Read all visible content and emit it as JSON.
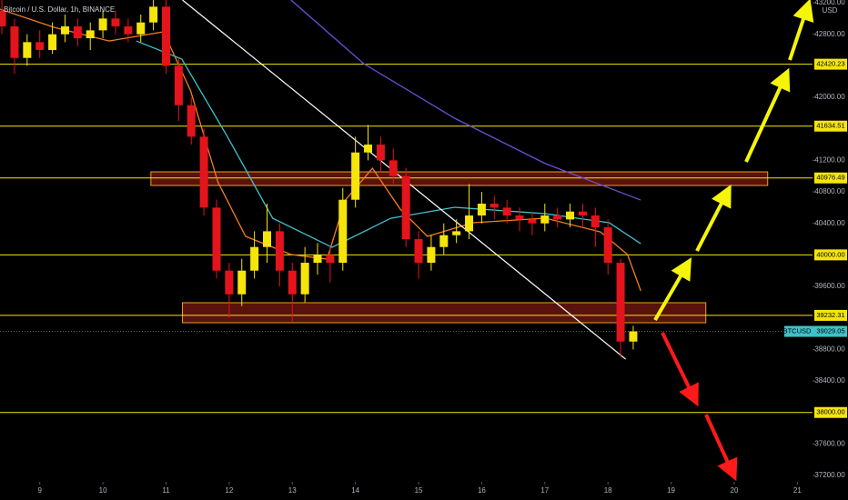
{
  "chart_data": {
    "type": "candlestick",
    "title": "Bitcoin / U.S. Dollar, 1h, BINANCE",
    "currency": "USD",
    "xlim": [
      8.37,
      21.24
    ],
    "ylim": [
      37120,
      43235
    ],
    "xticks": [
      9,
      10,
      11,
      12,
      13,
      14,
      15,
      16,
      17,
      18,
      19,
      20,
      21
    ],
    "yticks": [
      {
        "value": 43200,
        "label": "43200.00"
      },
      {
        "value": 42800,
        "label": "42800.00"
      },
      {
        "value": 42000,
        "label": "42000.00"
      },
      {
        "value": 41200,
        "label": "41200.00"
      },
      {
        "value": 40800,
        "label": "40800.00"
      },
      {
        "value": 40400,
        "label": "40400.00"
      },
      {
        "value": 39600,
        "label": "39600.00"
      },
      {
        "value": 38800,
        "label": "38800.00"
      },
      {
        "value": 38400,
        "label": "38400.00"
      },
      {
        "value": 37600,
        "label": "37600.00"
      },
      {
        "value": 37200,
        "label": "37200.00"
      }
    ],
    "candles": {
      "up_color": "#f5e50a",
      "down_color": "#e3141b",
      "x": [
        8.4,
        8.6,
        8.8,
        9.0,
        9.2,
        9.4,
        9.6,
        9.8,
        10.0,
        10.2,
        10.4,
        10.6,
        10.8,
        11.0,
        11.2,
        11.4,
        11.6,
        11.8,
        12.0,
        12.2,
        12.4,
        12.6,
        12.8,
        13.0,
        13.2,
        13.4,
        13.6,
        13.8,
        14.0,
        14.2,
        14.4,
        14.6,
        14.8,
        15.0,
        15.2,
        15.4,
        15.6,
        15.8,
        16.0,
        16.2,
        16.4,
        16.6,
        16.8,
        17.0,
        17.2,
        17.4,
        17.6,
        17.8,
        18.0,
        18.2,
        18.4
      ],
      "open": [
        43100,
        42900,
        42500,
        42700,
        42600,
        42800,
        42900,
        42750,
        42850,
        43000,
        42900,
        42800,
        42950,
        43150,
        42400,
        41900,
        41500,
        40600,
        39800,
        39500,
        39800,
        40100,
        40300,
        39800,
        39500,
        39900,
        40000,
        39900,
        40700,
        41300,
        41400,
        41200,
        41000,
        40200,
        39900,
        40100,
        40250,
        40300,
        40500,
        40650,
        40600,
        40500,
        40450,
        40400,
        40500,
        40450,
        40550,
        40500,
        40350,
        39900,
        38900
      ],
      "high": [
        43250,
        43000,
        42800,
        42850,
        42950,
        43050,
        43000,
        42950,
        43100,
        43100,
        43000,
        43050,
        43250,
        43250,
        42500,
        42000,
        41600,
        40700,
        39900,
        39950,
        40300,
        40650,
        40400,
        39900,
        40100,
        40150,
        40100,
        40850,
        41500,
        41650,
        41500,
        41350,
        41100,
        40300,
        40250,
        40400,
        40450,
        40900,
        40800,
        40750,
        40700,
        40600,
        40550,
        40650,
        40600,
        40650,
        40650,
        40600,
        40450,
        39950,
        39100
      ],
      "low": [
        42800,
        42300,
        42400,
        42500,
        42550,
        42700,
        42650,
        42600,
        42750,
        42800,
        42700,
        42700,
        42850,
        42300,
        41700,
        41400,
        40500,
        39700,
        39200,
        39350,
        39700,
        39900,
        39600,
        39150,
        39400,
        39750,
        39650,
        39800,
        40600,
        41200,
        41050,
        40900,
        40100,
        39700,
        39800,
        40000,
        40150,
        40200,
        40400,
        40450,
        40400,
        40300,
        40250,
        40300,
        40350,
        40350,
        40350,
        40100,
        39750,
        38700,
        38800
      ],
      "close": [
        42900,
        42500,
        42700,
        42600,
        42800,
        42900,
        42750,
        42850,
        43000,
        42900,
        42800,
        42950,
        43150,
        42400,
        41900,
        41500,
        40600,
        39800,
        39500,
        39800,
        40100,
        40300,
        39800,
        39500,
        39900,
        40000,
        39900,
        40700,
        41300,
        41400,
        41200,
        41000,
        40200,
        39900,
        40100,
        40250,
        40300,
        40500,
        40650,
        40600,
        40500,
        40450,
        40400,
        40500,
        40450,
        40550,
        40500,
        40350,
        39900,
        38900,
        39029.05
      ]
    },
    "series": [
      {
        "color": "#f57c1f",
        "x": [
          8.37,
          9.23,
          10.1,
          10.96,
          11.39,
          11.82,
          12.26,
          12.98,
          13.55,
          13.84,
          14.27,
          14.71,
          15.14,
          15.86,
          17.01,
          17.88,
          18.31,
          18.52
        ],
        "values": [
          43119,
          42888,
          42715,
          42831,
          42081,
          40927,
          40235,
          40004,
          39946,
          40696,
          41100,
          40581,
          40235,
          40408,
          40466,
          40292,
          40004,
          39543
        ]
      },
      {
        "color": "#3fc1c9",
        "x": [
          10.53,
          11.25,
          11.97,
          12.69,
          13.63,
          14.56,
          15.57,
          17.01,
          18.02,
          18.52
        ],
        "values": [
          42715,
          42485,
          41504,
          40465,
          40096,
          40465,
          40604,
          40523,
          40408,
          40142
        ]
      },
      {
        "color": "#6b4fd8",
        "x": [
          12.98,
          14.13,
          15.57,
          17.01,
          18.52
        ],
        "values": [
          43234,
          42427,
          41735,
          41158,
          40696
        ]
      }
    ],
    "trendline": {
      "color": "#ffffff",
      "x": [
        11.26,
        18.28
      ],
      "values": [
        43235,
        38677
      ]
    },
    "levels": [
      {
        "value": 42420.23,
        "label": "42420.23"
      },
      {
        "value": 41634.51,
        "label": "41634.51"
      },
      {
        "value": 40976.49,
        "label": "40976.49"
      },
      {
        "value": 40000,
        "label": "40000.00"
      },
      {
        "value": 39232.31,
        "label": "39232.31"
      },
      {
        "value": 38000,
        "label": "38000.00"
      }
    ],
    "level_color": "#f5e50a",
    "zones": [
      {
        "xlim": [
          10.76,
          20.53
        ],
        "ylim": [
          40881,
          41054
        ]
      },
      {
        "xlim": [
          11.26,
          19.55
        ],
        "ylim": [
          39139,
          39393
        ]
      }
    ],
    "last_price": {
      "symbol": "BTCUSD",
      "value": 39029.05,
      "color": "#3fc1c9"
    }
  }
}
